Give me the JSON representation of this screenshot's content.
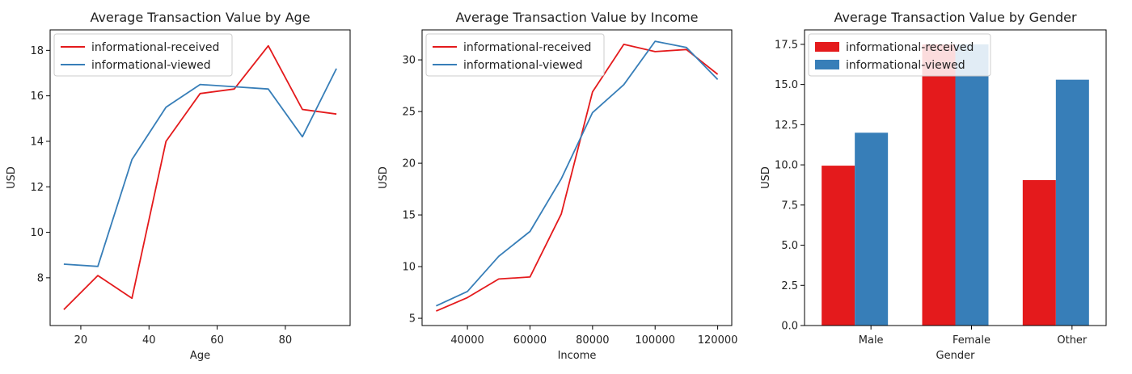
{
  "chart_data": [
    {
      "type": "line",
      "title": "Average Transaction Value by Age",
      "xlabel": "Age",
      "ylabel": "USD",
      "xlim": [
        11,
        99
      ],
      "ylim": [
        5.9,
        18.9
      ],
      "xticks": [
        20,
        40,
        60,
        80
      ],
      "yticks": [
        8,
        10,
        12,
        14,
        16,
        18
      ],
      "legend_position": "upper-left",
      "x": [
        15,
        25,
        35,
        45,
        55,
        65,
        75,
        85,
        95
      ],
      "series": [
        {
          "name": "informational-received",
          "color": "#e41a1c",
          "values": [
            6.6,
            8.1,
            7.1,
            14.0,
            16.1,
            16.3,
            18.2,
            15.4,
            15.2
          ]
        },
        {
          "name": "informational-viewed",
          "color": "#377eb8",
          "values": [
            8.6,
            8.5,
            13.2,
            15.5,
            16.5,
            16.4,
            16.3,
            14.2,
            17.2
          ]
        }
      ]
    },
    {
      "type": "line",
      "title": "Average Transaction Value by Income",
      "xlabel": "Income",
      "ylabel": "USD",
      "xlim": [
        25500,
        124500
      ],
      "ylim": [
        4.3,
        32.9
      ],
      "xticks": [
        40000,
        60000,
        80000,
        100000,
        120000
      ],
      "yticks": [
        5,
        10,
        15,
        20,
        25,
        30
      ],
      "legend_position": "upper-left",
      "x": [
        30000,
        40000,
        50000,
        60000,
        70000,
        80000,
        90000,
        100000,
        110000,
        120000
      ],
      "series": [
        {
          "name": "informational-received",
          "color": "#e41a1c",
          "values": [
            5.7,
            7.0,
            8.8,
            9.0,
            15.1,
            26.9,
            31.5,
            30.8,
            31.0,
            28.6
          ]
        },
        {
          "name": "informational-viewed",
          "color": "#377eb8",
          "values": [
            6.2,
            7.6,
            11.0,
            13.4,
            18.5,
            24.9,
            27.6,
            31.8,
            31.2,
            28.1
          ]
        }
      ]
    },
    {
      "type": "bar",
      "title": "Average Transaction Value by Gender",
      "xlabel": "Gender",
      "ylabel": "USD",
      "ylim": [
        0,
        18.4
      ],
      "yticks": [
        0.0,
        2.5,
        5.0,
        7.5,
        10.0,
        12.5,
        15.0,
        17.5
      ],
      "ytick_labels": [
        "0.0",
        "2.5",
        "5.0",
        "7.5",
        "10.0",
        "12.5",
        "15.0",
        "17.5"
      ],
      "legend_position": "upper-left",
      "categories": [
        "Male",
        "Female",
        "Other"
      ],
      "series": [
        {
          "name": "informational-received",
          "color": "#e41a1c",
          "values": [
            9.95,
            17.5,
            9.05
          ]
        },
        {
          "name": "informational-viewed",
          "color": "#377eb8",
          "values": [
            12.0,
            17.5,
            15.3
          ]
        }
      ]
    }
  ]
}
